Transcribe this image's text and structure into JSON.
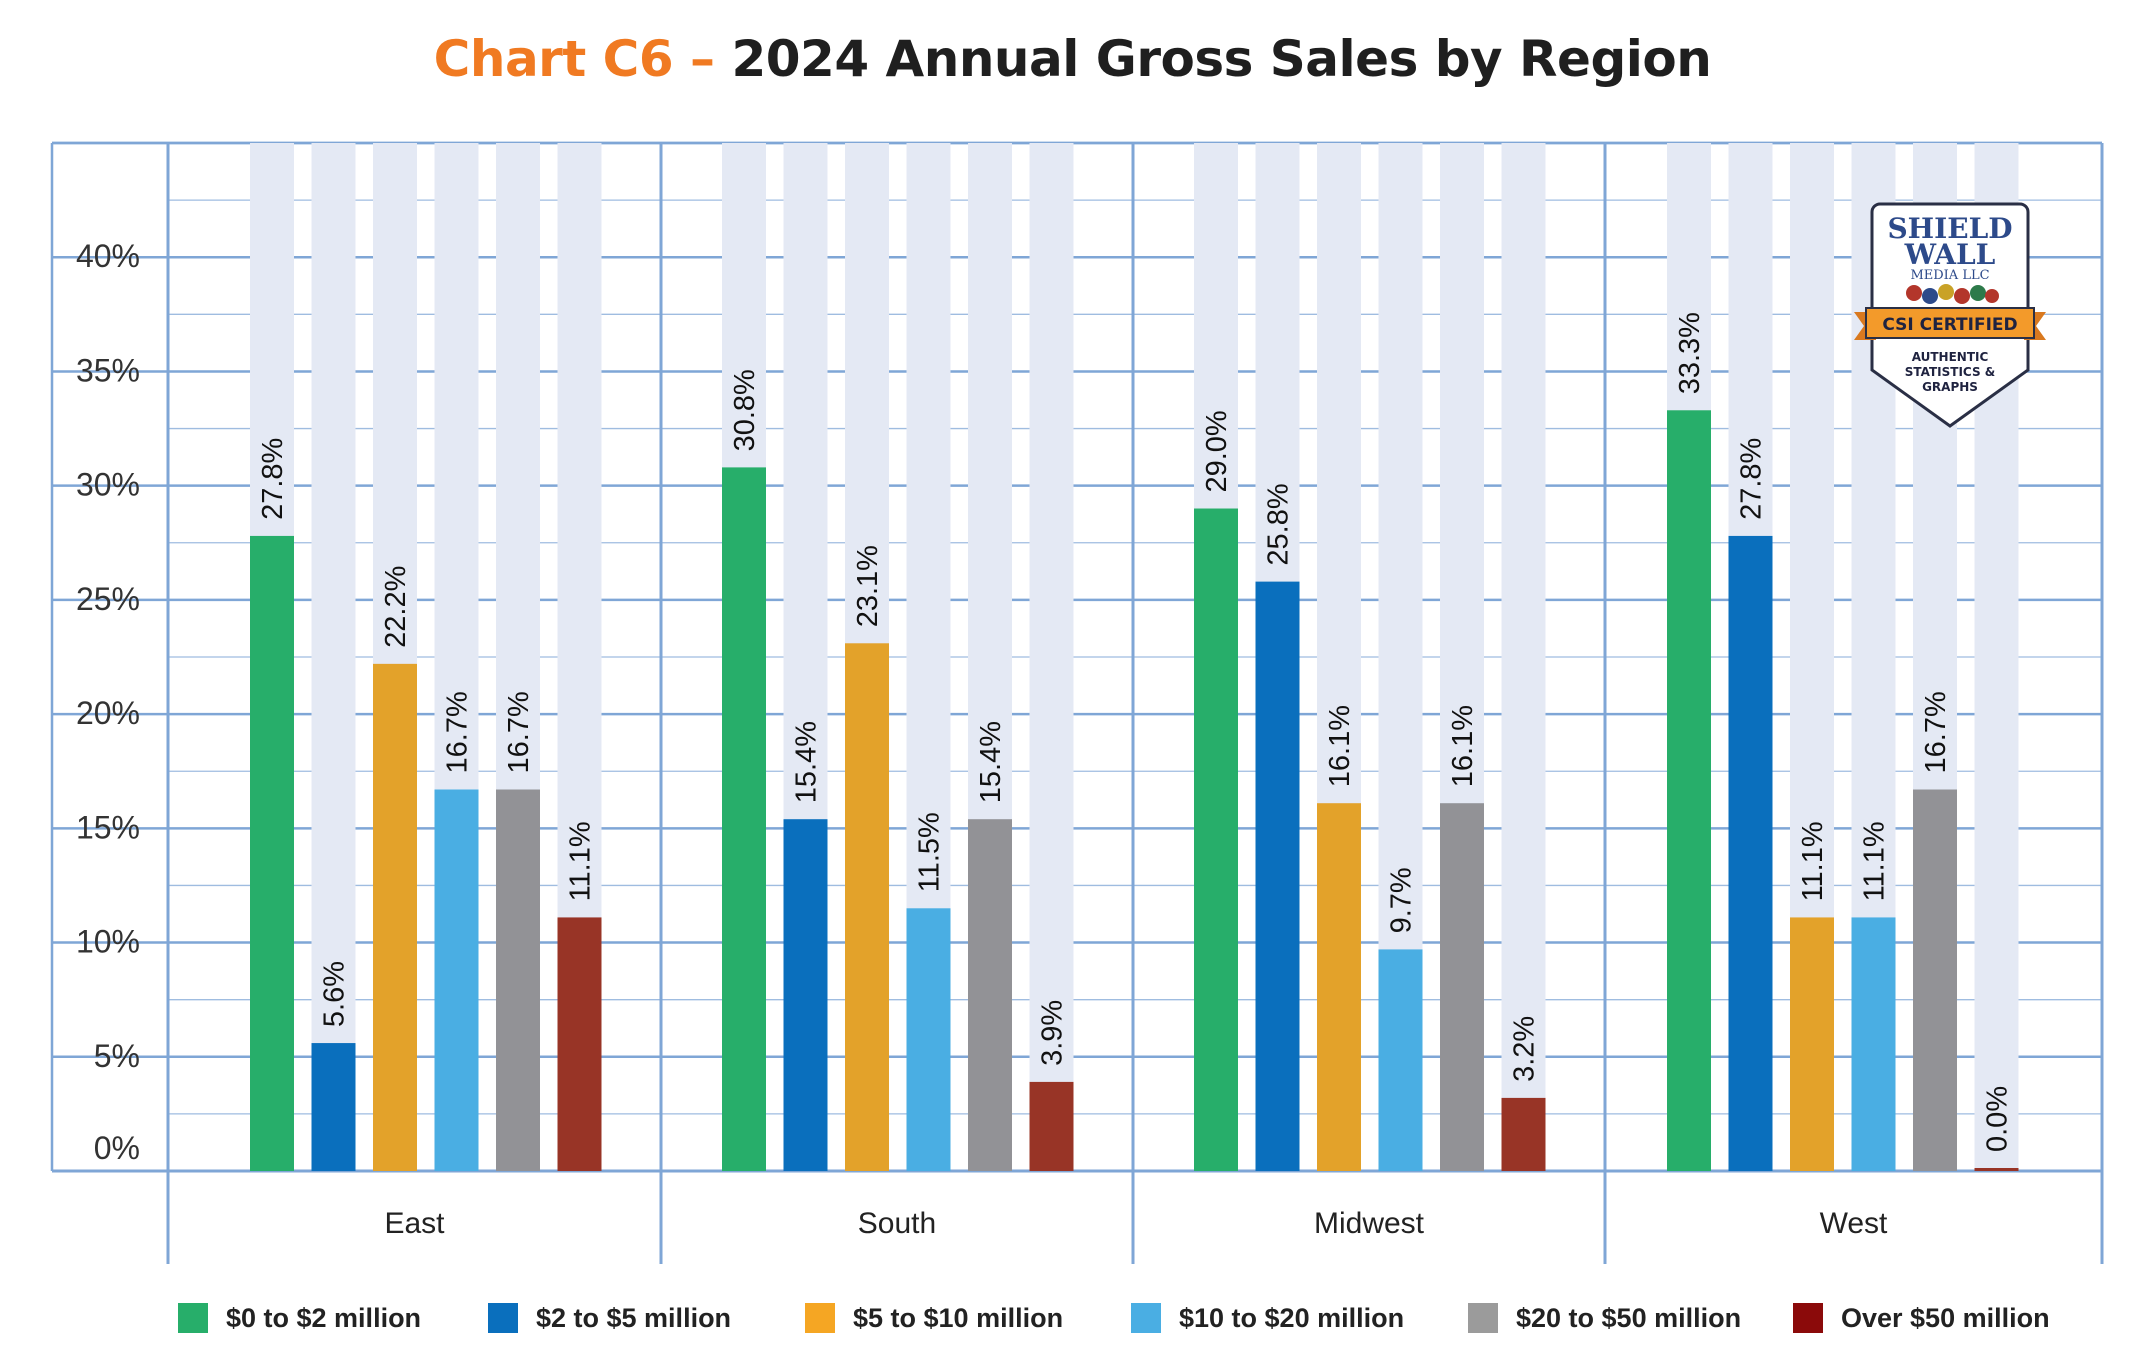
{
  "title": {
    "prefix": "Chart C6 –",
    "main": "2024 Annual Gross Sales by Region"
  },
  "badge": {
    "line1": "SHIELD",
    "line2": "WALL",
    "line3": "MEDIA LLC",
    "ribbon": "CSI CERTIFIED",
    "sub1": "AUTHENTIC",
    "sub2": "STATISTICS &",
    "sub3": "GRAPHS"
  },
  "colors": {
    "grid": "#7fa6d6",
    "bar_bg": "#e4e9f4",
    "series": [
      "#27ae6a",
      "#0a6fbd",
      "#e3a22a",
      "#4aaee3",
      "#929296",
      "#983426"
    ],
    "legend_swatches": [
      "#27ae6a",
      "#0a6fbd",
      "#f5a623",
      "#4aaee3",
      "#9b9b9b",
      "#8b0a0a"
    ]
  },
  "chart_data": {
    "type": "bar",
    "title": "2024 Annual Gross Sales by Region",
    "categories": [
      "East",
      "South",
      "Midwest",
      "West"
    ],
    "series": [
      {
        "name": "$0 to $2 million",
        "values": [
          27.8,
          30.8,
          29.0,
          33.3
        ],
        "labels": [
          "27.8%",
          "30.8%",
          "29.0%",
          "33.3%"
        ]
      },
      {
        "name": "$2 to $5 million",
        "values": [
          5.6,
          15.4,
          25.8,
          27.8
        ],
        "labels": [
          "5.6%",
          "15.4%",
          "25.8%",
          "27.8%"
        ]
      },
      {
        "name": "$5 to $10 million",
        "values": [
          22.2,
          23.1,
          16.1,
          11.1
        ],
        "labels": [
          "22.2%",
          "23.1%",
          "16.1%",
          "11.1%"
        ]
      },
      {
        "name": "$10 to $20 million",
        "values": [
          16.7,
          11.5,
          9.7,
          11.1
        ],
        "labels": [
          "16.7%",
          "11.5%",
          "9.7%",
          "11.1%"
        ]
      },
      {
        "name": "$20 to $50 million",
        "values": [
          16.7,
          15.4,
          16.1,
          16.7
        ],
        "labels": [
          "16.7%",
          "15.4%",
          "16.1%",
          "16.7%"
        ]
      },
      {
        "name": "Over $50 million",
        "values": [
          11.1,
          3.9,
          3.2,
          0.0
        ],
        "labels": [
          "11.1%",
          "3.9%",
          "3.2%",
          "0.0%"
        ]
      }
    ],
    "yticks": [
      "0%",
      "5%",
      "10%",
      "15%",
      "20%",
      "25%",
      "30%",
      "35%",
      "40%"
    ],
    "ylim": [
      0,
      45
    ],
    "grid": true,
    "legend": "bottom"
  }
}
